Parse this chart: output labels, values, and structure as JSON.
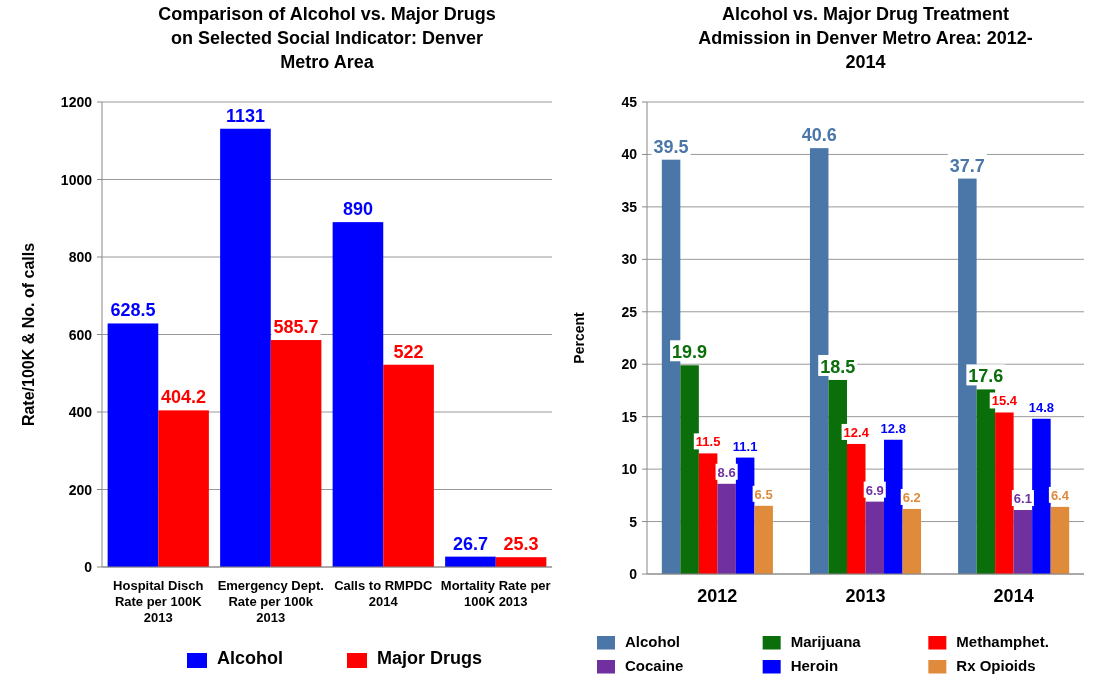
{
  "chart_data": [
    {
      "type": "bar",
      "title": "Comparison of Alcohol vs. Major Drugs on Selected Social Indicator:  Denver Metro Area",
      "ylabel": "Rate/100K & No. of calls",
      "categories": [
        "Hospital Disch Rate per 100K 2013",
        "Emergency Dept. Rate per 100k 2013",
        "Calls to RMPDC 2014",
        "Mortality Rate per 100K 2013"
      ],
      "series": [
        {
          "name": "Alcohol",
          "color": "#0000ff",
          "values": [
            628.5,
            1131,
            890,
            26.7
          ]
        },
        {
          "name": "Major Drugs",
          "color": "#ff0000",
          "values": [
            404.2,
            585.7,
            522,
            25.3
          ]
        }
      ],
      "ylim": [
        0,
        1200
      ],
      "yticks": [
        0,
        200,
        400,
        600,
        800,
        1000,
        1200
      ],
      "grid": "y",
      "legend": "bottom",
      "data_labels": true
    },
    {
      "type": "bar",
      "title": "Alcohol vs. Major Drug Treatment Admission in Denver Metro Area: 2012-2014",
      "ylabel": "Percent",
      "categories": [
        "2012",
        "2013",
        "2014"
      ],
      "series": [
        {
          "name": "Alcohol",
          "color": "#4a76a8",
          "values": [
            39.5,
            40.6,
            37.7
          ]
        },
        {
          "name": "Marijuana",
          "color": "#0a6e0a",
          "values": [
            19.9,
            18.5,
            17.6
          ]
        },
        {
          "name": "Methamphet.",
          "color": "#ff0000",
          "values": [
            11.5,
            12.4,
            15.4
          ]
        },
        {
          "name": "Cocaine",
          "color": "#7030a0",
          "values": [
            8.6,
            6.9,
            6.1
          ]
        },
        {
          "name": "Heroin",
          "color": "#0000ff",
          "values": [
            11.1,
            12.8,
            14.8
          ]
        },
        {
          "name": "Rx Opioids",
          "color": "#e08a3c",
          "values": [
            6.5,
            6.2,
            6.4
          ]
        }
      ],
      "ylim": [
        0,
        45
      ],
      "yticks": [
        0,
        5,
        10,
        15,
        20,
        25,
        30,
        35,
        40,
        45
      ],
      "grid": "y",
      "legend": "bottom",
      "data_labels": true
    }
  ]
}
